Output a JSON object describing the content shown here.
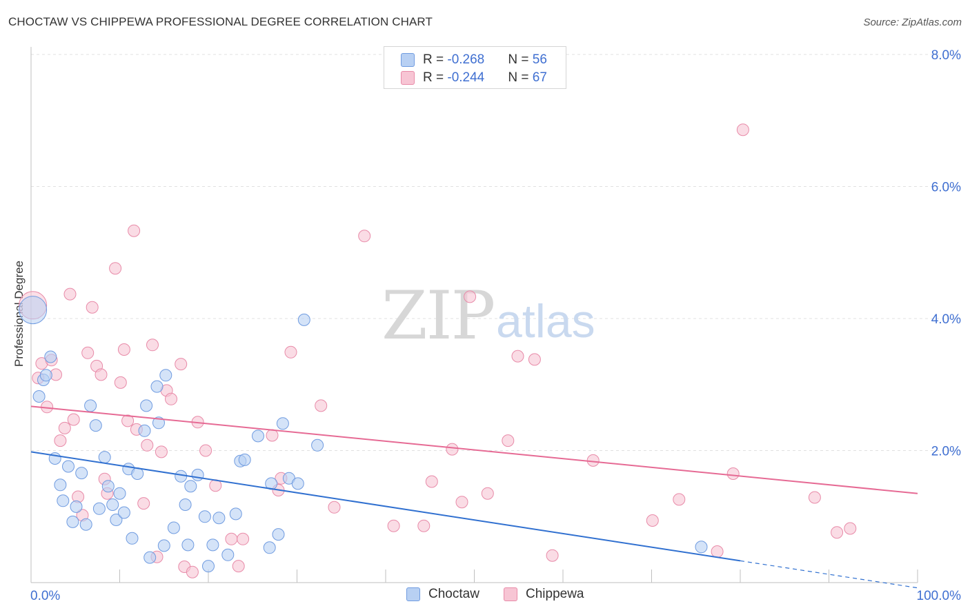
{
  "header": {
    "title": "CHOCTAW VS CHIPPEWA PROFESSIONAL DEGREE CORRELATION CHART",
    "source": "Source: ZipAtlas.com"
  },
  "watermark": {
    "zip": "ZIP",
    "atlas": "atlas"
  },
  "legend": {
    "rows": [
      {
        "r_label": "R = ",
        "r_value": "-0.268",
        "n_label": "N = ",
        "n_value": "56"
      },
      {
        "r_label": "R = ",
        "r_value": "-0.244",
        "n_label": "N = ",
        "n_value": "67"
      }
    ],
    "bottom": [
      "Choctaw",
      "Chippewa"
    ]
  },
  "colors": {
    "choctaw_fill": "#b8d0f3",
    "choctaw_stroke": "#6f9be0",
    "choctaw_line": "#3070d0",
    "chippewa_fill": "#f7c5d4",
    "chippewa_stroke": "#e88aa8",
    "chippewa_line": "#e66a94",
    "tick_label": "#3f6fd1",
    "grid": "#e0e0e0"
  },
  "chart_data": {
    "type": "scatter",
    "title": "CHOCTAW VS CHIPPEWA PROFESSIONAL DEGREE CORRELATION CHART",
    "xlabel": "",
    "ylabel": "Professional Degree",
    "xlim": [
      0,
      100
    ],
    "ylim": [
      0,
      8.4
    ],
    "x_tick_labels": [
      "0.0%",
      "100.0%"
    ],
    "y_ticks": [
      2,
      4,
      6,
      8
    ],
    "y_tick_labels": [
      "2.0%",
      "4.0%",
      "6.0%",
      "8.0%"
    ],
    "grid": "horizontal dashed",
    "legend_position": "top-center",
    "series": [
      {
        "name": "Choctaw",
        "r": -0.268,
        "n": 56,
        "trend": {
          "x0": 0,
          "y0": 1.98,
          "x1": 80,
          "y1": 0.33,
          "dashed_to_x": 100,
          "dashed_to_y": -0.08
        },
        "points": [
          [
            0.2,
            4.13
          ],
          [
            0.9,
            2.82
          ],
          [
            1.4,
            3.07
          ],
          [
            1.7,
            3.14
          ],
          [
            2.2,
            3.42
          ],
          [
            2.7,
            1.88
          ],
          [
            3.3,
            1.48
          ],
          [
            3.6,
            1.24
          ],
          [
            4.2,
            1.76
          ],
          [
            4.7,
            0.92
          ],
          [
            5.1,
            1.15
          ],
          [
            5.7,
            1.66
          ],
          [
            6.2,
            0.88
          ],
          [
            6.7,
            2.68
          ],
          [
            7.3,
            2.38
          ],
          [
            7.7,
            1.12
          ],
          [
            8.3,
            1.9
          ],
          [
            8.7,
            1.46
          ],
          [
            9.2,
            1.18
          ],
          [
            9.6,
            0.95
          ],
          [
            10.0,
            1.35
          ],
          [
            10.5,
            1.06
          ],
          [
            11.0,
            1.72
          ],
          [
            11.4,
            0.67
          ],
          [
            12.0,
            1.65
          ],
          [
            12.8,
            2.3
          ],
          [
            13.0,
            2.68
          ],
          [
            13.4,
            0.38
          ],
          [
            14.2,
            2.97
          ],
          [
            14.4,
            2.42
          ],
          [
            15.0,
            0.56
          ],
          [
            15.2,
            3.14
          ],
          [
            16.1,
            0.83
          ],
          [
            16.9,
            1.61
          ],
          [
            17.4,
            1.18
          ],
          [
            17.7,
            0.57
          ],
          [
            18.0,
            1.46
          ],
          [
            18.8,
            1.63
          ],
          [
            19.6,
            1.0
          ],
          [
            20.0,
            0.25
          ],
          [
            20.5,
            0.57
          ],
          [
            21.2,
            0.98
          ],
          [
            22.2,
            0.42
          ],
          [
            23.1,
            1.04
          ],
          [
            23.6,
            1.84
          ],
          [
            24.1,
            1.86
          ],
          [
            25.6,
            2.22
          ],
          [
            26.9,
            0.53
          ],
          [
            27.1,
            1.5
          ],
          [
            27.9,
            0.73
          ],
          [
            28.4,
            2.41
          ],
          [
            29.1,
            1.58
          ],
          [
            30.1,
            1.5
          ],
          [
            30.8,
            3.98
          ],
          [
            32.3,
            2.08
          ],
          [
            75.6,
            0.54
          ]
        ]
      },
      {
        "name": "Chippewa",
        "r": -0.244,
        "n": 67,
        "trend": {
          "x0": 0,
          "y0": 2.67,
          "x1": 100,
          "y1": 1.35
        },
        "points": [
          [
            0.2,
            4.2
          ],
          [
            0.8,
            3.1
          ],
          [
            1.2,
            3.32
          ],
          [
            1.8,
            2.66
          ],
          [
            2.3,
            3.37
          ],
          [
            2.8,
            3.15
          ],
          [
            3.3,
            2.15
          ],
          [
            3.8,
            2.34
          ],
          [
            4.4,
            4.37
          ],
          [
            4.8,
            2.47
          ],
          [
            5.3,
            1.3
          ],
          [
            5.8,
            1.02
          ],
          [
            6.4,
            3.48
          ],
          [
            6.9,
            4.17
          ],
          [
            7.4,
            3.28
          ],
          [
            7.9,
            3.15
          ],
          [
            8.3,
            1.57
          ],
          [
            8.6,
            1.35
          ],
          [
            9.5,
            4.76
          ],
          [
            10.1,
            3.03
          ],
          [
            10.5,
            3.53
          ],
          [
            10.9,
            2.45
          ],
          [
            11.6,
            5.33
          ],
          [
            11.9,
            2.32
          ],
          [
            12.7,
            1.2
          ],
          [
            13.1,
            2.08
          ],
          [
            13.7,
            3.6
          ],
          [
            14.2,
            0.39
          ],
          [
            14.7,
            1.98
          ],
          [
            15.3,
            2.91
          ],
          [
            15.8,
            2.78
          ],
          [
            16.9,
            3.31
          ],
          [
            17.3,
            0.24
          ],
          [
            18.2,
            0.16
          ],
          [
            18.8,
            2.43
          ],
          [
            19.7,
            2.0
          ],
          [
            20.8,
            1.47
          ],
          [
            22.6,
            0.66
          ],
          [
            23.4,
            0.25
          ],
          [
            23.9,
            0.66
          ],
          [
            27.2,
            2.23
          ],
          [
            27.9,
            1.4
          ],
          [
            28.2,
            1.58
          ],
          [
            29.3,
            3.49
          ],
          [
            32.7,
            2.68
          ],
          [
            34.2,
            1.14
          ],
          [
            37.6,
            5.25
          ],
          [
            40.9,
            0.86
          ],
          [
            44.3,
            0.86
          ],
          [
            45.2,
            1.53
          ],
          [
            47.5,
            2.02
          ],
          [
            48.6,
            1.22
          ],
          [
            49.5,
            4.33
          ],
          [
            51.5,
            1.35
          ],
          [
            53.8,
            2.15
          ],
          [
            54.9,
            3.43
          ],
          [
            56.8,
            3.38
          ],
          [
            58.8,
            0.41
          ],
          [
            63.4,
            1.85
          ],
          [
            70.1,
            0.94
          ],
          [
            73.1,
            1.26
          ],
          [
            77.4,
            0.47
          ],
          [
            79.2,
            1.65
          ],
          [
            80.3,
            6.86
          ],
          [
            88.4,
            1.29
          ],
          [
            90.9,
            0.76
          ],
          [
            92.4,
            0.82
          ]
        ]
      }
    ]
  }
}
